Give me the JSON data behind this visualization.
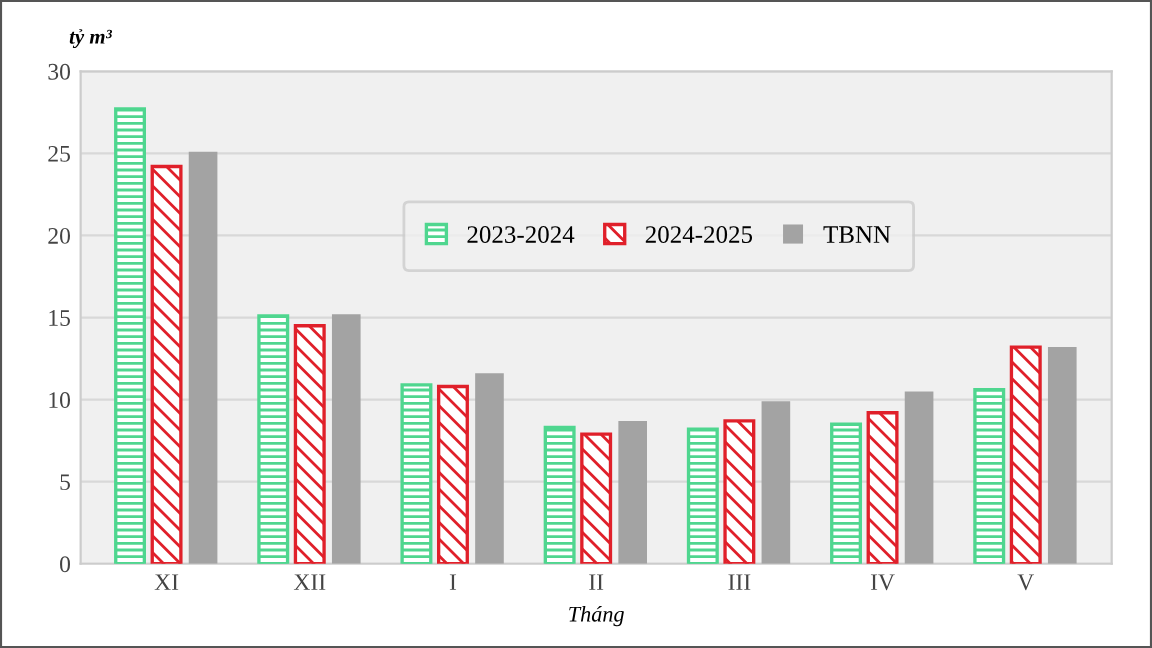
{
  "chart_data": {
    "type": "bar",
    "xlabel": "Tháng",
    "ylabel": "tỷ m³",
    "categories": [
      "XI",
      "XII",
      "I",
      "II",
      "III",
      "IV",
      "V"
    ],
    "series": [
      {
        "name": "2023-2024",
        "color": "#4fd68f",
        "values": [
          27.7,
          15.1,
          10.9,
          8.3,
          8.2,
          8.5,
          10.6
        ]
      },
      {
        "name": "2024-2025",
        "color": "#e0202a",
        "values": [
          24.2,
          14.5,
          10.8,
          7.9,
          8.7,
          9.2,
          13.2
        ]
      },
      {
        "name": "TBNN",
        "color": "#a3a3a3",
        "values": [
          25.1,
          15.2,
          11.6,
          8.7,
          9.9,
          10.5,
          13.2
        ]
      }
    ],
    "ylim": [
      0,
      30
    ],
    "yticks": [
      0,
      5,
      10,
      15,
      20,
      25,
      30
    ],
    "grid": "y",
    "legend": "top right"
  }
}
